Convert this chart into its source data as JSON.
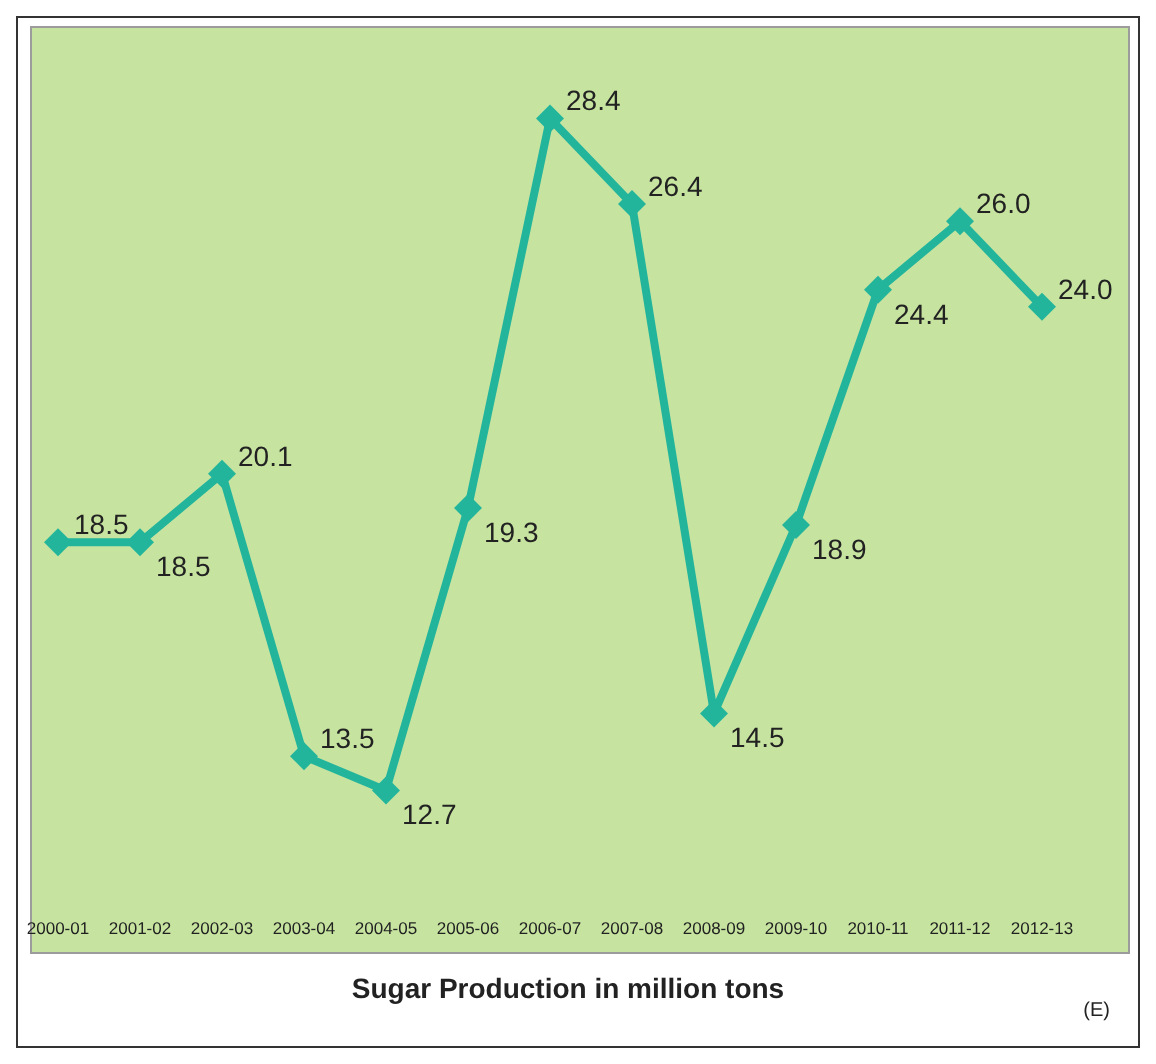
{
  "chart_data": {
    "type": "line",
    "xlabel": "Sugar Production in million tons",
    "categories": [
      "2000-01",
      "2001-02",
      "2002-03",
      "2003-04",
      "2004-05",
      "2005-06",
      "2006-07",
      "2007-08",
      "2008-09",
      "2009-10",
      "2010-11",
      "2011-12",
      "2012-13"
    ],
    "series": [
      {
        "color": "#22b59c",
        "values": [
          18.5,
          18.5,
          20.1,
          13.5,
          12.7,
          19.3,
          28.4,
          26.4,
          14.5,
          18.9,
          24.4,
          26.0,
          24.0
        ],
        "value_labels": [
          "18.5",
          "18.5",
          "20.1",
          "13.5",
          "12.7",
          "19.3",
          "28.4",
          "26.4",
          "14.5",
          "18.9",
          "24.4",
          "26.0",
          "24.0"
        ]
      }
    ],
    "marker": "diamond",
    "annotations": [
      "(E)"
    ]
  }
}
